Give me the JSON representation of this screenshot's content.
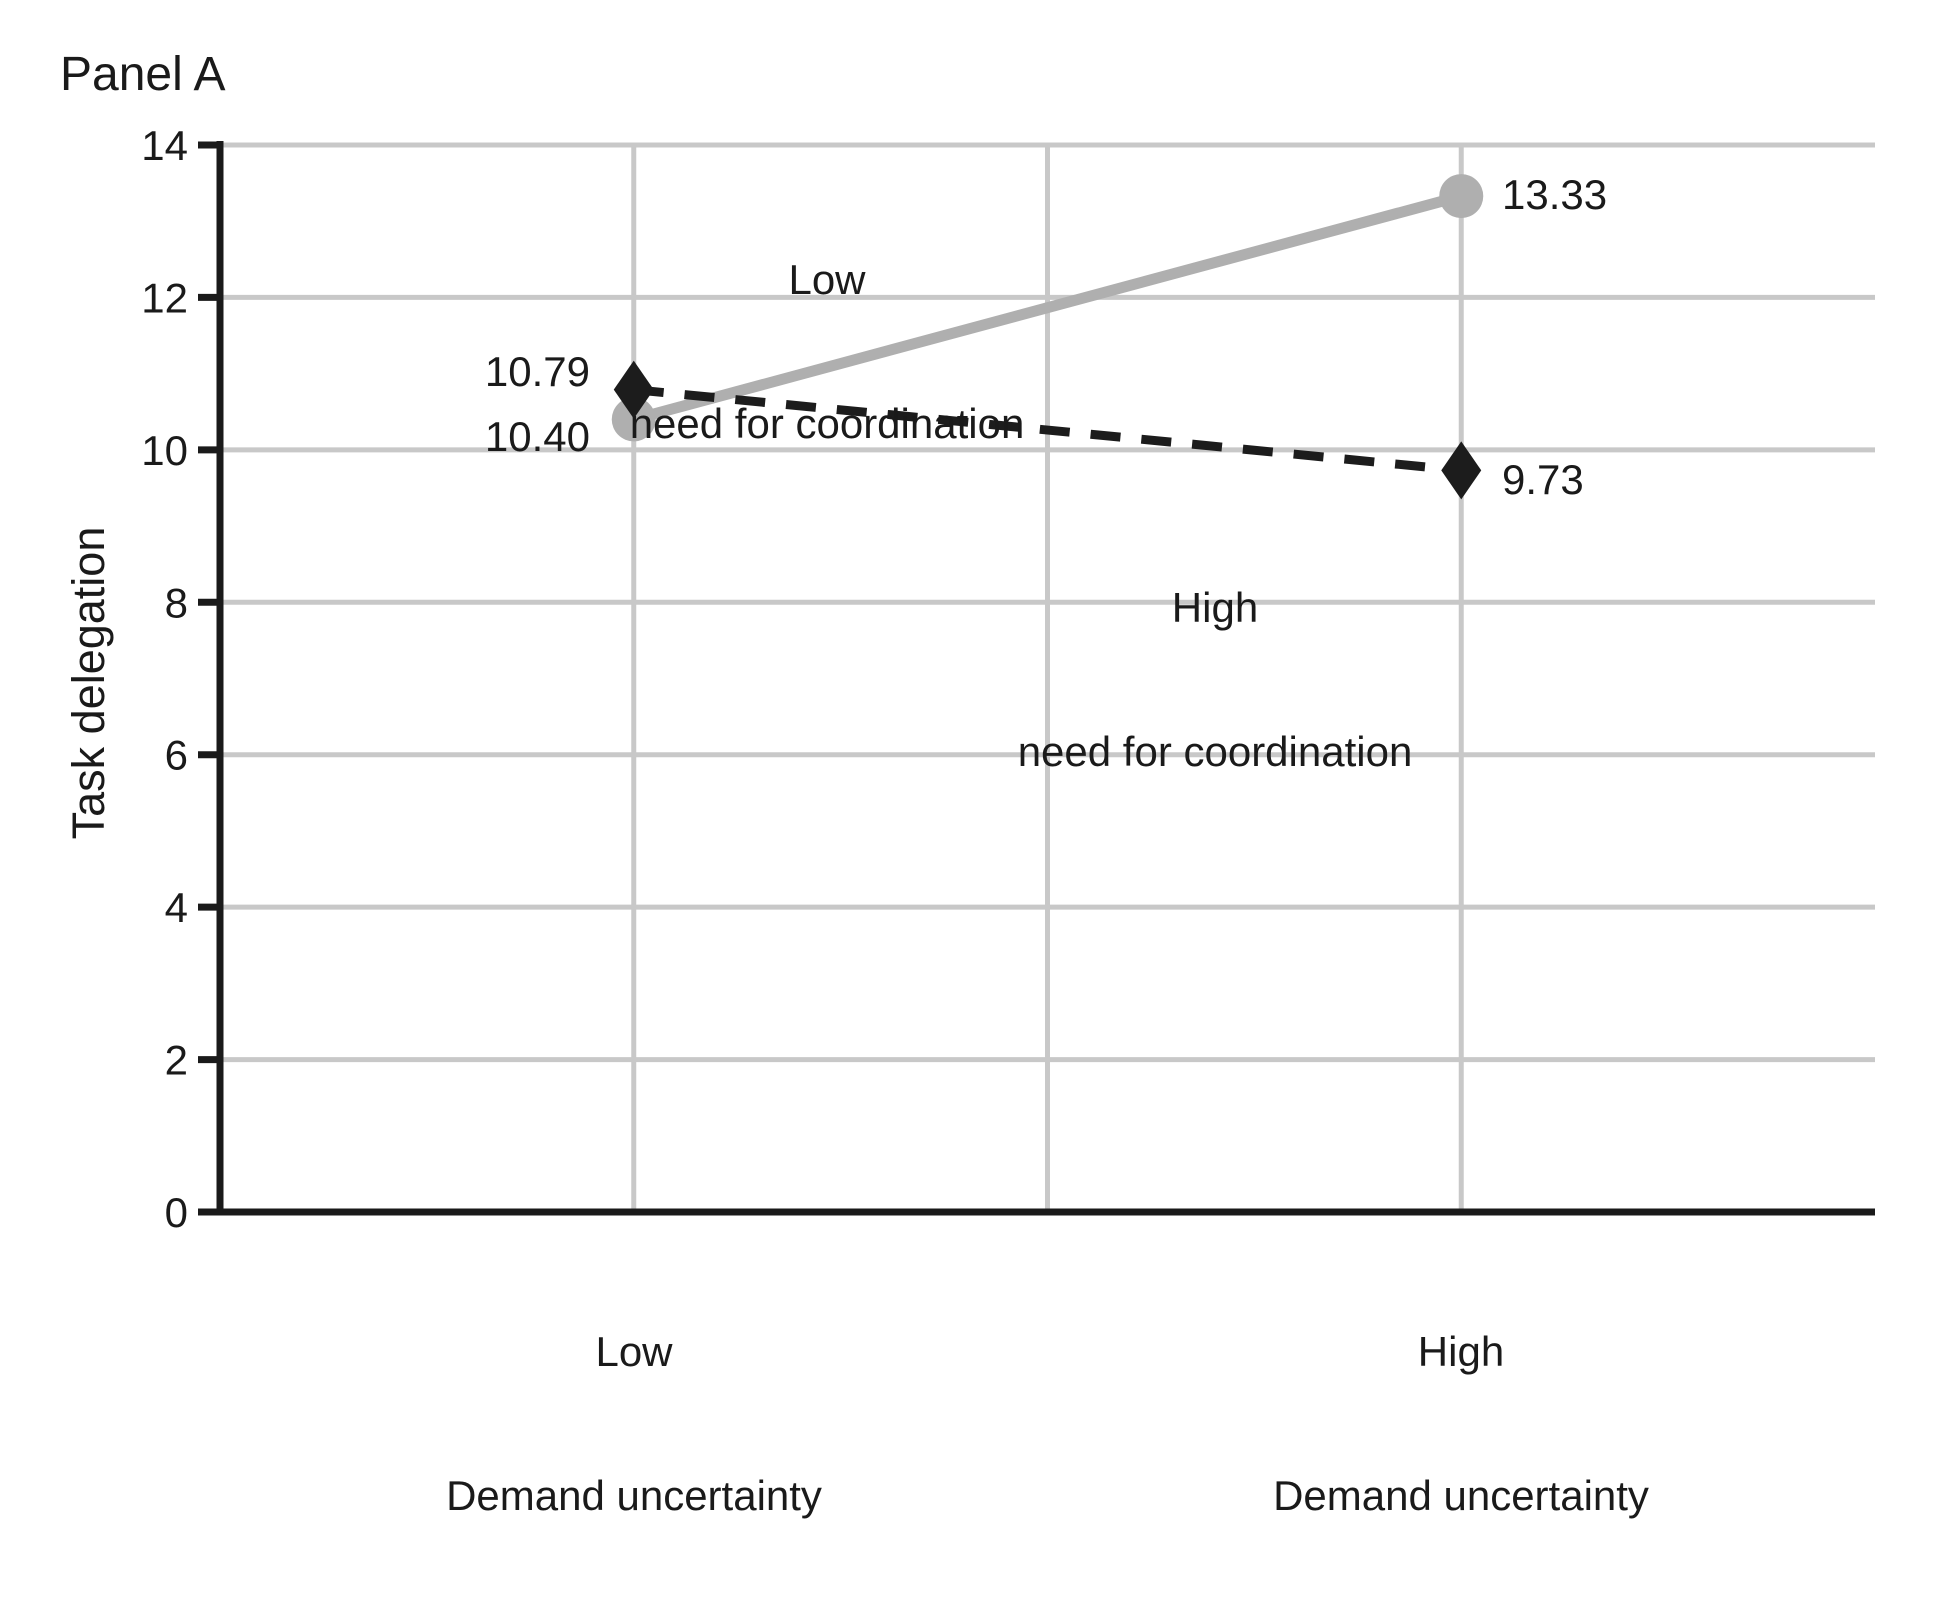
{
  "colors": {
    "background": "#ffffff",
    "text": "#1a1a1a",
    "axis": "#1a1a1a",
    "gridline": "#c8c8c8",
    "series_gray": "#afafaf",
    "series_black": "#1c1c1c"
  },
  "chart_data": {
    "type": "line",
    "title": "Panel A",
    "ylabel": "Task delegation",
    "xlabel": "Demand uncertainty",
    "ylim": [
      0,
      14
    ],
    "yticks": [
      0,
      2,
      4,
      6,
      8,
      10,
      12,
      14
    ],
    "grid": true,
    "legend": "inline-annotations",
    "categories": [
      {
        "line1": "Low",
        "line2": "Demand uncertainty"
      },
      {
        "line1": "High",
        "line2": "Demand uncertainty"
      }
    ],
    "series": [
      {
        "name": "Low need for coordination",
        "values": [
          10.4,
          13.33
        ],
        "labels": [
          "10.40",
          "13.33"
        ],
        "color": "#afafaf",
        "line_style": "solid",
        "marker": "circle"
      },
      {
        "name": "High need for coordination",
        "values": [
          10.79,
          9.73
        ],
        "labels": [
          "10.79",
          "9.73"
        ],
        "color": "#1c1c1c",
        "line_style": "dashed",
        "marker": "diamond"
      }
    ],
    "annotations": [
      {
        "line1": "Low",
        "line2": "need for coordination"
      },
      {
        "line1": "High",
        "line2": "need for coordination"
      }
    ]
  }
}
